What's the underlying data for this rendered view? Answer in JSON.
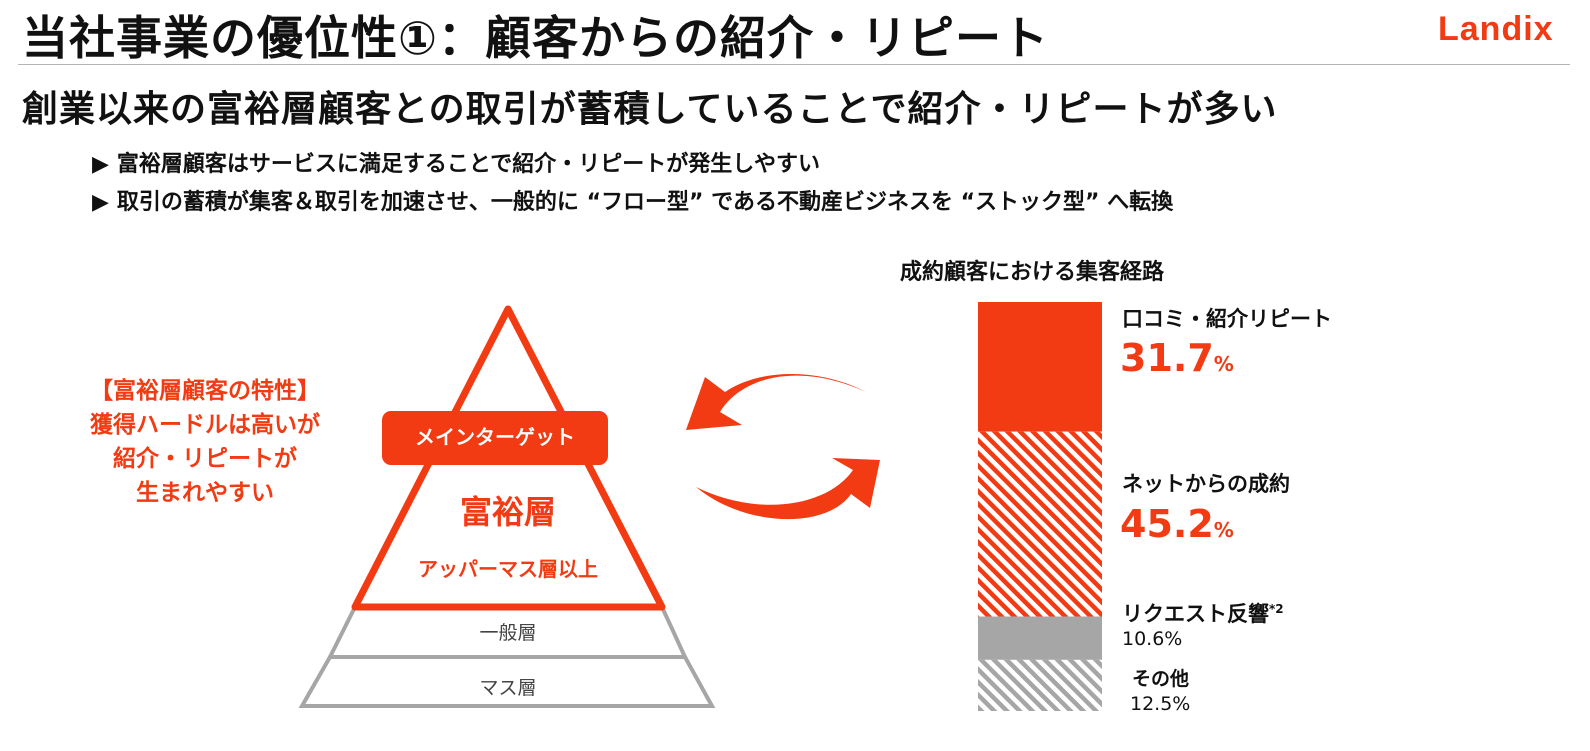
{
  "title": "当社事業の優位性①：顧客からの紹介・リピート",
  "logo": "Landix",
  "headline": "創業以来の富裕層顧客との取引が蓄積していることで紹介・リピートが多い",
  "bullets": [
    "富裕層顧客はサービスに満足することで紹介・リピートが発生しやすい",
    "取引の蓄積が集客＆取引を加速させ、一般的に “フロー型” である不動産ビジネスを “ストック型” へ転換"
  ],
  "bullet_marker": "▶",
  "side_note": {
    "line1": "【富裕層顧客の特性】",
    "line2": "獲得ハードルは高いが",
    "line3": "紹介・リピートが",
    "line4": "生まれやすい"
  },
  "pyramid": {
    "main_target": "メインターゲット",
    "wealthy": "富裕層",
    "upper_mass": "アッパーマス層以上",
    "general": "一般層",
    "mass": "マス層"
  },
  "colors": {
    "accent": "#f23a13",
    "gray": "#a6a6a6",
    "text": "#111111"
  },
  "chart_data": {
    "type": "bar",
    "stacked": true,
    "title": "成約顧客における集客経路",
    "unit": "%",
    "segments": [
      {
        "label": "口コミ・紹介リピート",
        "value": 31.7,
        "display": "31.7",
        "fill": "solid-orange"
      },
      {
        "label": "ネットからの成約",
        "value": 45.2,
        "display": "45.2",
        "fill": "hatched-orange"
      },
      {
        "label": "リクエスト反響",
        "footnote": "*2",
        "value": 10.6,
        "display": "10.6%",
        "fill": "solid-gray"
      },
      {
        "label": "その他",
        "value": 12.5,
        "display": "12.5%",
        "fill": "hatched-gray"
      }
    ]
  }
}
